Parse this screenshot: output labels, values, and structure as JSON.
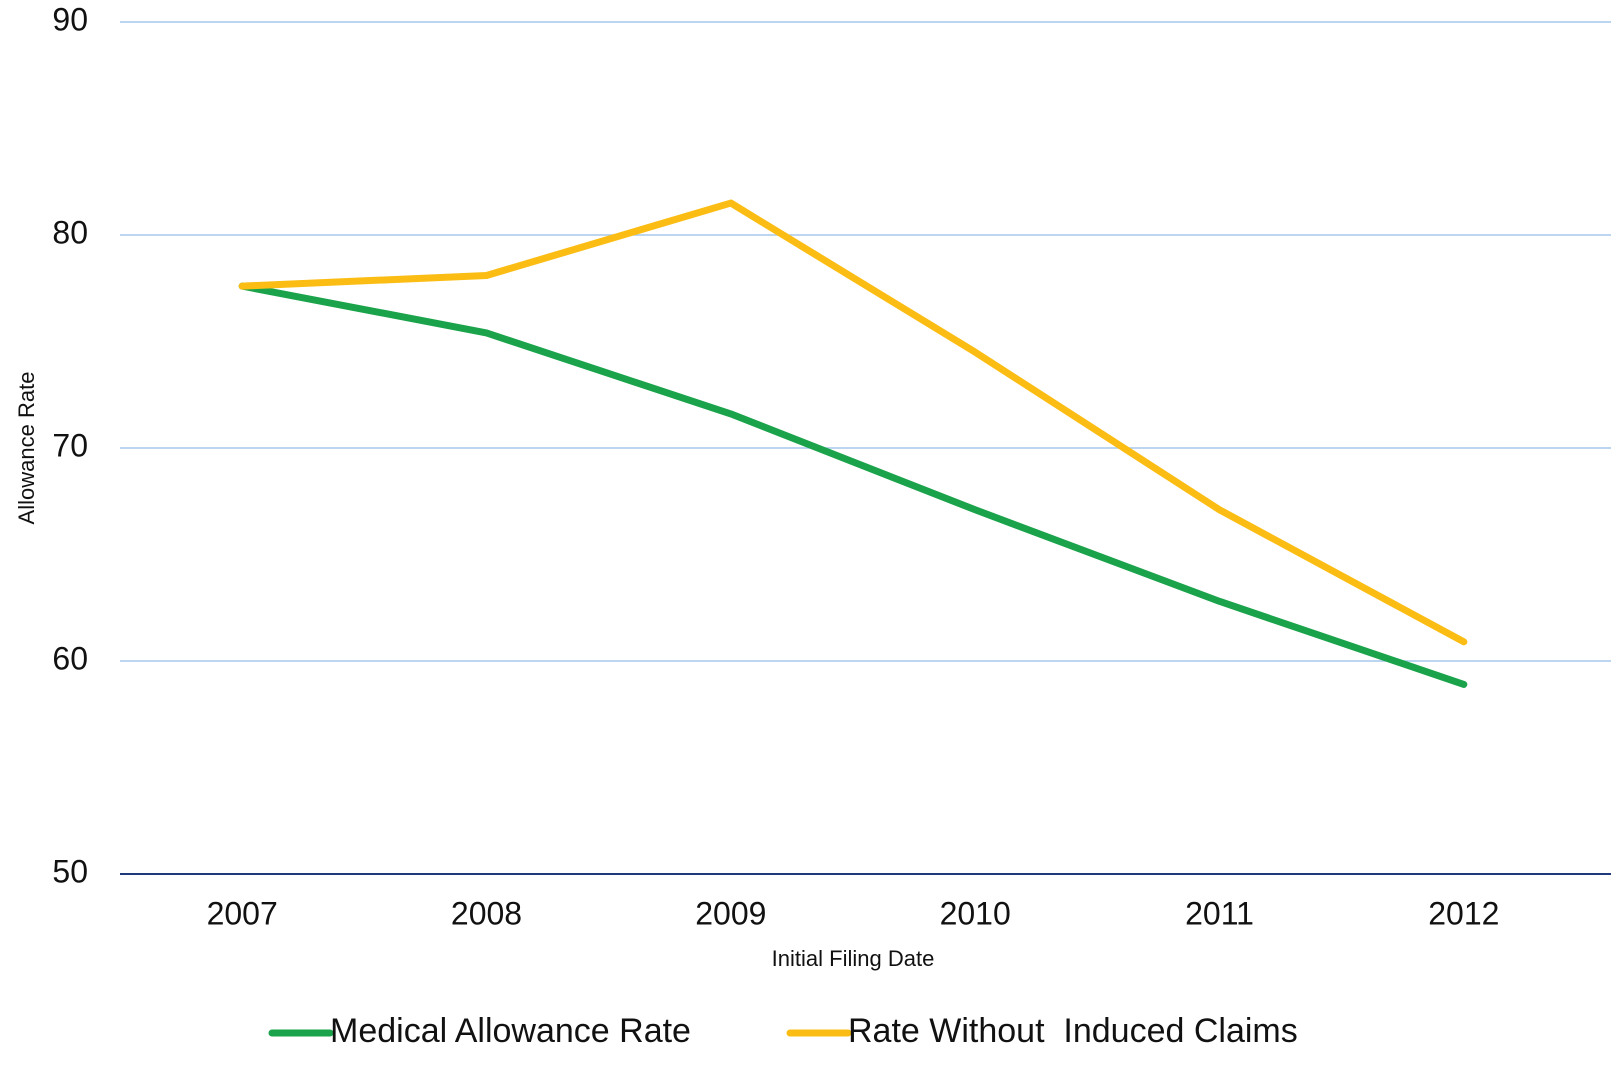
{
  "chart_data": {
    "type": "line",
    "y_label": "Allowance Rate",
    "x_label": "Initial Filing Date",
    "categories": [
      "2007",
      "2008",
      "2009",
      "2010",
      "2011",
      "2012"
    ],
    "series": [
      {
        "name": "Medical Allowance Rate",
        "color": "#1aa34a",
        "values": [
          77.6,
          75.4,
          71.6,
          67.1,
          62.8,
          58.9
        ]
      },
      {
        "name": "Rate Without  Induced Claims",
        "color": "#fbbd13",
        "values": [
          77.6,
          78.1,
          81.5,
          74.5,
          67.1,
          60.9
        ]
      }
    ],
    "ylim": [
      50,
      90
    ],
    "yticks": [
      50,
      60,
      70,
      80,
      90
    ],
    "grid": true,
    "legend": "bottom"
  }
}
